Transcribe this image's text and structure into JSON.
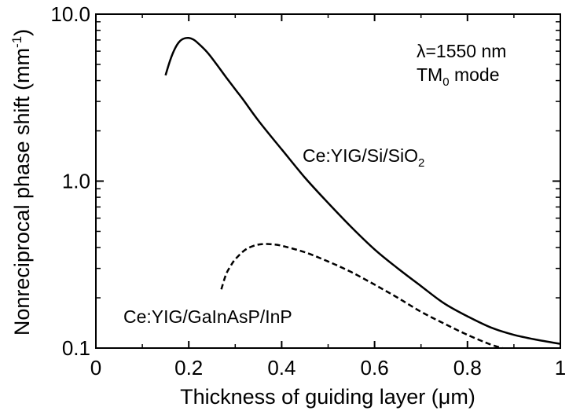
{
  "chart_data": {
    "type": "line",
    "title": "",
    "xlabel": "Thickness of guiding layer (μm)",
    "ylabel": "Nonreciprocal phase shift (mm",
    "ylabel_sup": "-1",
    "ylabel_close": ")",
    "xlim": [
      0,
      1
    ],
    "ylim": [
      0.1,
      10.0
    ],
    "yscale": "log",
    "grid": false,
    "legend": "none",
    "x_ticks": [
      0,
      0.2,
      0.4,
      0.6,
      0.8,
      1
    ],
    "x_tick_labels": [
      "0",
      "0.2",
      "0.4",
      "0.6",
      "0.8",
      "1"
    ],
    "y_ticks": [
      0.1,
      1.0,
      10.0
    ],
    "y_tick_labels": [
      "0.1",
      "1.0",
      "10.0"
    ],
    "annotation": {
      "line1": "λ=1550 nm",
      "line2_main": "TM",
      "line2_sub": "0",
      "line2_rest": " mode"
    },
    "series": [
      {
        "label": "Ce:YIG/Si/SiO",
        "label_sub": "2",
        "style": "solid",
        "color": "#000000",
        "x": [
          0.15,
          0.16,
          0.17,
          0.18,
          0.19,
          0.2,
          0.21,
          0.22,
          0.24,
          0.26,
          0.28,
          0.3,
          0.32,
          0.35,
          0.4,
          0.45,
          0.5,
          0.55,
          0.6,
          0.65,
          0.7,
          0.75,
          0.8,
          0.85,
          0.9,
          0.95,
          1.0
        ],
        "y": [
          4.3,
          5.3,
          6.2,
          6.85,
          7.15,
          7.2,
          7.05,
          6.7,
          5.9,
          5.0,
          4.2,
          3.55,
          3.0,
          2.3,
          1.55,
          1.05,
          0.74,
          0.53,
          0.39,
          0.3,
          0.235,
          0.185,
          0.155,
          0.133,
          0.12,
          0.112,
          0.106
        ]
      },
      {
        "label": "Ce:YIG/GaInAsP/InP",
        "style": "dashed",
        "color": "#000000",
        "x": [
          0.27,
          0.28,
          0.29,
          0.3,
          0.32,
          0.34,
          0.36,
          0.38,
          0.4,
          0.45,
          0.5,
          0.55,
          0.6,
          0.65,
          0.7,
          0.75,
          0.8,
          0.85,
          0.875
        ],
        "y": [
          0.225,
          0.275,
          0.31,
          0.34,
          0.385,
          0.41,
          0.42,
          0.418,
          0.41,
          0.375,
          0.33,
          0.285,
          0.24,
          0.2,
          0.165,
          0.14,
          0.12,
          0.105,
          0.1
        ]
      }
    ]
  }
}
